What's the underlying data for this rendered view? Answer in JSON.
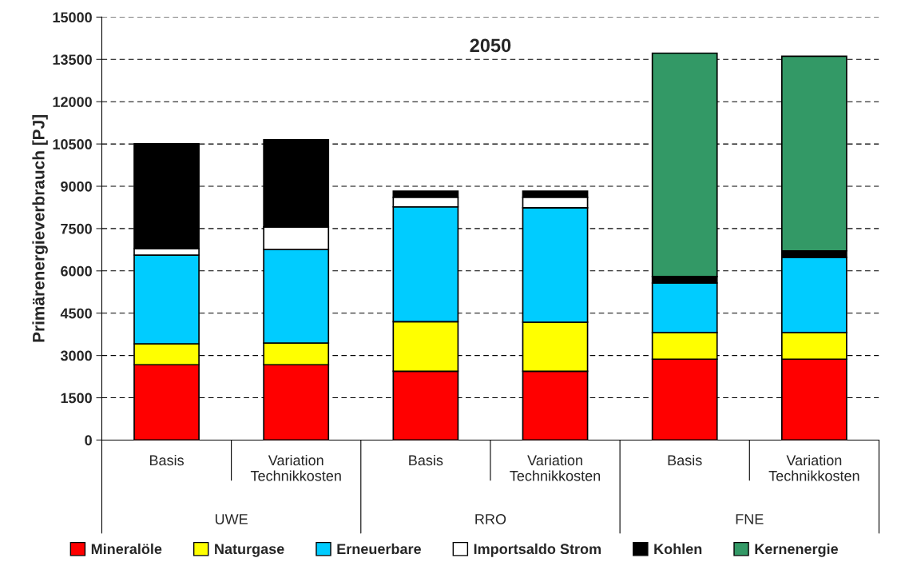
{
  "chart_data": {
    "type": "bar",
    "title": "2050",
    "ylabel": "Primärenergieverbrauch [PJ]",
    "categories": [
      "Basis",
      "Variation\nTechnikkosten",
      "Basis",
      "Variation\nTechnikkosten",
      "Basis",
      "Variation\nTechnikkosten"
    ],
    "annotations": [
      "UWE",
      "RRO",
      "FNE"
    ],
    "stacked": true,
    "series": [
      {
        "name": "Mineralöle",
        "color": "#ff0000",
        "values": [
          2670,
          2670,
          2440,
          2440,
          2870,
          2870
        ]
      },
      {
        "name": "Naturgase",
        "color": "#ffff00",
        "values": [
          740,
          770,
          1760,
          1740,
          940,
          940
        ]
      },
      {
        "name": "Erneuerbare",
        "color": "#00ccff",
        "values": [
          3150,
          3320,
          4070,
          4060,
          1760,
          2670
        ]
      },
      {
        "name": "Importsaldo Strom",
        "color": "#ffffff",
        "values": [
          230,
          800,
          340,
          370,
          0,
          0
        ]
      },
      {
        "name": "Kohlen",
        "color": "#000000",
        "values": [
          3720,
          3090,
          220,
          220,
          230,
          230
        ]
      },
      {
        "name": "Kernenergie",
        "color": "#339966",
        "values": [
          0,
          0,
          0,
          0,
          7920,
          6900
        ]
      }
    ],
    "ylim": [
      0,
      15000
    ],
    "yticks": [
      0,
      1500,
      3000,
      4500,
      6000,
      7500,
      9000,
      10500,
      12000,
      13500,
      15000
    ],
    "grid": "y",
    "legend": "bottom"
  }
}
